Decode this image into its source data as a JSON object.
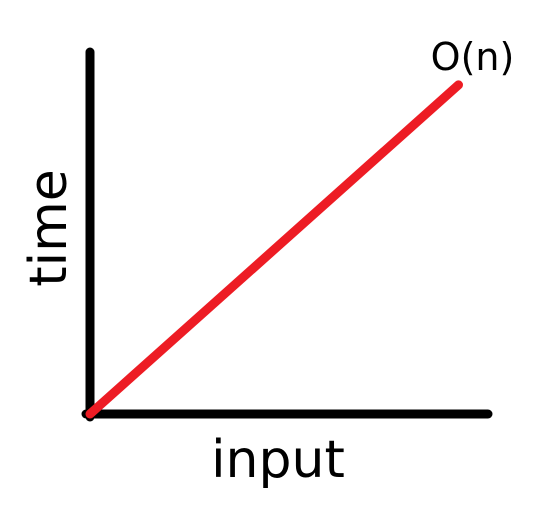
{
  "chart_data": {
    "type": "line",
    "title": "",
    "xlabel": "input",
    "ylabel": "time",
    "axis_ticks": false,
    "grid": false,
    "series": [
      {
        "name": "O(n)",
        "color": "#ed1c24",
        "x": [
          0,
          1
        ],
        "y": [
          0,
          1
        ]
      }
    ],
    "xlim": [
      0,
      1.08
    ],
    "ylim": [
      0,
      1.1
    ]
  },
  "colors": {
    "axis": "#000000",
    "background": "#ffffff"
  }
}
